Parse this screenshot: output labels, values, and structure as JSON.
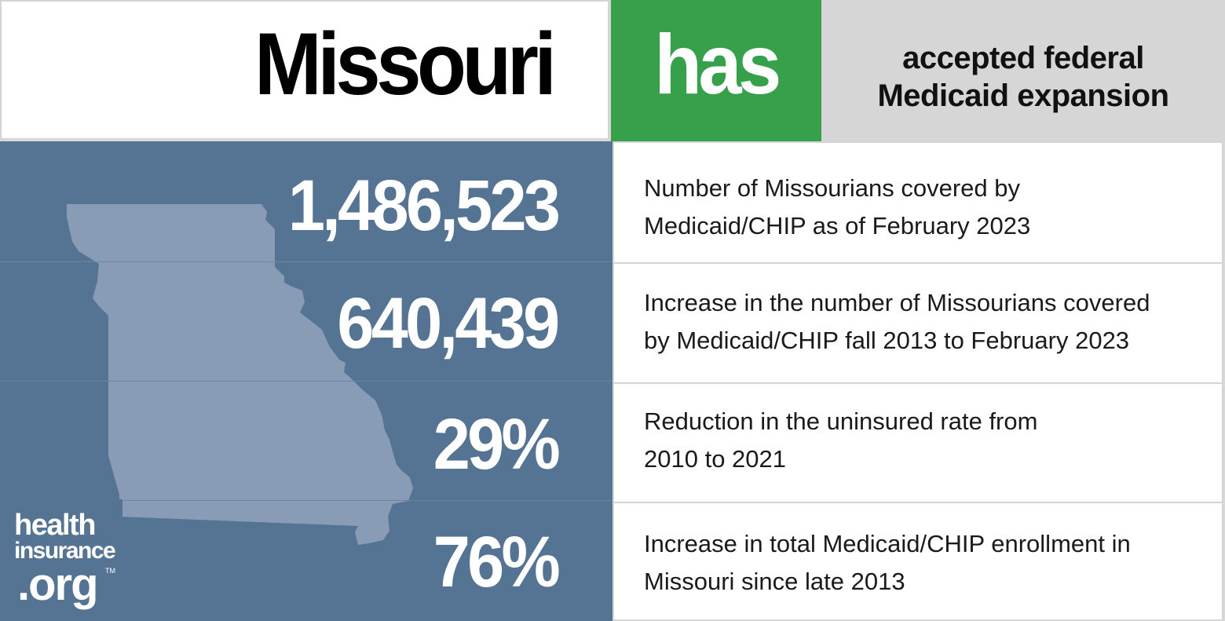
{
  "header": {
    "state": "Missouri",
    "status": "has",
    "description_lines": [
      "accepted federal",
      "Medicaid expansion"
    ]
  },
  "stats": [
    {
      "value": "1,486,523",
      "description_lines": [
        "Number of Missourians covered by",
        "Medicaid/CHIP as of February 2023"
      ]
    },
    {
      "value": "640,439",
      "description_lines": [
        "Increase in the number of Missourians covered",
        "by Medicaid/CHIP fall 2013 to February 2023"
      ]
    },
    {
      "value": "29%",
      "description_lines": [
        "Reduction in the uninsured rate from",
        "2010 to 2021"
      ]
    },
    {
      "value": "76%",
      "description_lines": [
        "Increase in total Medicaid/CHIP enrollment in",
        "Missouri since late 2013"
      ]
    }
  ],
  "logo": {
    "line1": "health",
    "line2": "insurance",
    "line3": ".org",
    "trademark": "TM"
  },
  "colors": {
    "status_green": "#37a04a",
    "panel_blue": "#557392",
    "map_fill": "#889db5",
    "description_gray": "#d6d6d6"
  },
  "icons": {
    "map": "missouri-state-outline",
    "logo": "healthinsurance-org-logo"
  }
}
